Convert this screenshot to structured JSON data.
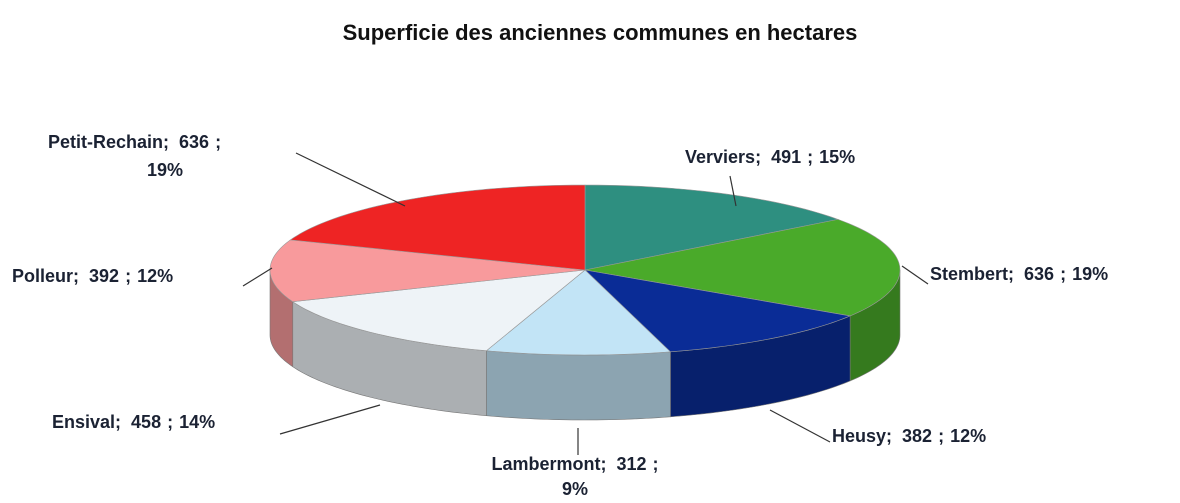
{
  "chart_data": {
    "type": "pie3d",
    "title": "Superficie des anciennes communes en hectares",
    "categories": [
      "Verviers",
      "Stembert",
      "Heusy",
      "Lambermont",
      "Ensival",
      "Polleur",
      "Petit-Rechain"
    ],
    "values": [
      491,
      636,
      382,
      312,
      458,
      392,
      636
    ],
    "percent_labels": [
      "15%",
      "19%",
      "12%",
      "9%",
      "14%",
      "12%",
      "19%"
    ],
    "separator": ";",
    "colors": [
      "#2e8f80",
      "#4aaa2a",
      "#0a2c96",
      "#c2e4f6",
      "#eef3f7",
      "#f89a9c",
      "#ee2424"
    ]
  }
}
